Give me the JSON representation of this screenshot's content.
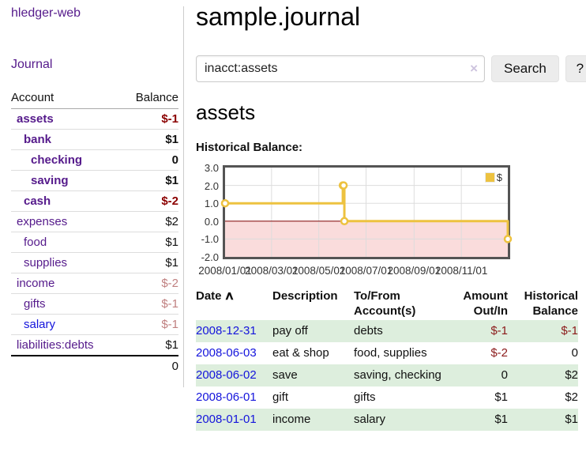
{
  "app": {
    "title": "hledger-web"
  },
  "sidebar": {
    "journal_label": "Journal",
    "accounts": {
      "col_account": "Account",
      "col_balance": "Balance",
      "rows": [
        {
          "name": "assets",
          "balance": "$-1",
          "indent": 1,
          "bold": true,
          "name_style": "purple",
          "balance_style": "neg"
        },
        {
          "name": "bank",
          "balance": "$1",
          "indent": 2,
          "bold": true,
          "name_style": "purple",
          "balance_style": "pos"
        },
        {
          "name": "checking",
          "balance": "0",
          "indent": 3,
          "bold": true,
          "name_style": "purple",
          "balance_style": "pos"
        },
        {
          "name": "saving",
          "balance": "$1",
          "indent": 3,
          "bold": true,
          "name_style": "purple",
          "balance_style": "pos"
        },
        {
          "name": "cash",
          "balance": "$-2",
          "indent": 2,
          "bold": true,
          "name_style": "purple",
          "balance_style": "neg"
        },
        {
          "name": "expenses",
          "balance": "$2",
          "indent": 1,
          "bold": false,
          "name_style": "purple",
          "balance_style": "pos"
        },
        {
          "name": "food",
          "balance": "$1",
          "indent": 2,
          "bold": false,
          "name_style": "purple",
          "balance_style": "pos"
        },
        {
          "name": "supplies",
          "balance": "$1",
          "indent": 2,
          "bold": false,
          "name_style": "purple",
          "balance_style": "pos"
        },
        {
          "name": "income",
          "balance": "$-2",
          "indent": 1,
          "bold": false,
          "name_style": "purple",
          "balance_style": "neg-faded"
        },
        {
          "name": "gifts",
          "balance": "$-1",
          "indent": 2,
          "bold": false,
          "name_style": "purple",
          "balance_style": "neg-faded"
        },
        {
          "name": "salary",
          "balance": "$-1",
          "indent": 2,
          "bold": false,
          "name_style": "blue",
          "balance_style": "neg-faded"
        },
        {
          "name": "liabilities:debts",
          "balance": "$1",
          "indent": 1,
          "bold": false,
          "name_style": "purple",
          "balance_style": "pos"
        }
      ],
      "total": "0"
    }
  },
  "main": {
    "title": "sample.journal",
    "search": {
      "query": "inacct:assets",
      "clear_icon": "×",
      "button_label": "Search",
      "help_label": "?"
    },
    "account_heading": "assets",
    "chart_label": "Historical Balance:"
  },
  "chart_data": {
    "type": "line",
    "title": "Historical Balance",
    "step": "after",
    "ylim": [
      -2.0,
      3.0
    ],
    "x_range": [
      "2008-01-01",
      "2008-12-31"
    ],
    "y_ticks": [
      "3.0",
      "2.0",
      "1.0",
      "0.0",
      "-1.0",
      "-2.0"
    ],
    "x_ticks": [
      "2008/01/01",
      "2008/03/01",
      "2008/05/01",
      "2008/07/01",
      "2008/09/01",
      "2008/11/01"
    ],
    "series": [
      {
        "name": "$",
        "color": "#EDC240",
        "points": [
          {
            "date": "2008-01-01",
            "value": 1
          },
          {
            "date": "2008-06-01",
            "value": 2
          },
          {
            "date": "2008-06-02",
            "value": 2
          },
          {
            "date": "2008-06-03",
            "value": 0
          },
          {
            "date": "2008-12-31",
            "value": -1
          }
        ]
      }
    ],
    "legend": {
      "label": "$",
      "position": "top-right"
    },
    "grid": true,
    "grid_color": "#DDDDDD",
    "negative_region_color": "#FADCDC",
    "zero_line_color": "#8B1A1A",
    "border_color": "#545454"
  },
  "register": {
    "headers": {
      "date": "Date",
      "sort_icon": "∧",
      "description": "Description",
      "account_line1": "To/From",
      "account_line2": "Account(s)",
      "amount_line1": "Amount",
      "amount_line2": "Out/In",
      "balance_line1": "Historical",
      "balance_line2": "Balance"
    },
    "rows": [
      {
        "date": "2008-12-31",
        "description": "pay off",
        "accounts": "debts",
        "amount": "$-1",
        "amount_neg": true,
        "balance": "$-1",
        "balance_neg": true,
        "shaded": true
      },
      {
        "date": "2008-06-03",
        "description": "eat & shop",
        "accounts": "food, supplies",
        "amount": "$-2",
        "amount_neg": true,
        "balance": "0",
        "balance_neg": false,
        "shaded": false
      },
      {
        "date": "2008-06-02",
        "description": "save",
        "accounts": "saving, checking",
        "amount": "0",
        "amount_neg": false,
        "balance": "$2",
        "balance_neg": false,
        "shaded": true
      },
      {
        "date": "2008-06-01",
        "description": "gift",
        "accounts": "gifts",
        "amount": "$1",
        "amount_neg": false,
        "balance": "$2",
        "balance_neg": false,
        "shaded": false
      },
      {
        "date": "2008-01-01",
        "description": "income",
        "accounts": "salary",
        "amount": "$1",
        "amount_neg": false,
        "balance": "$1",
        "balance_neg": false,
        "shaded": true
      }
    ]
  },
  "colors": {
    "link_purple": "#551A8B",
    "link_blue": "#1414DC",
    "negative": "#8B0000",
    "negative_faded": "#C08080",
    "row_shade_green": "#DDEEDD",
    "series_yellow": "#EDC240"
  }
}
